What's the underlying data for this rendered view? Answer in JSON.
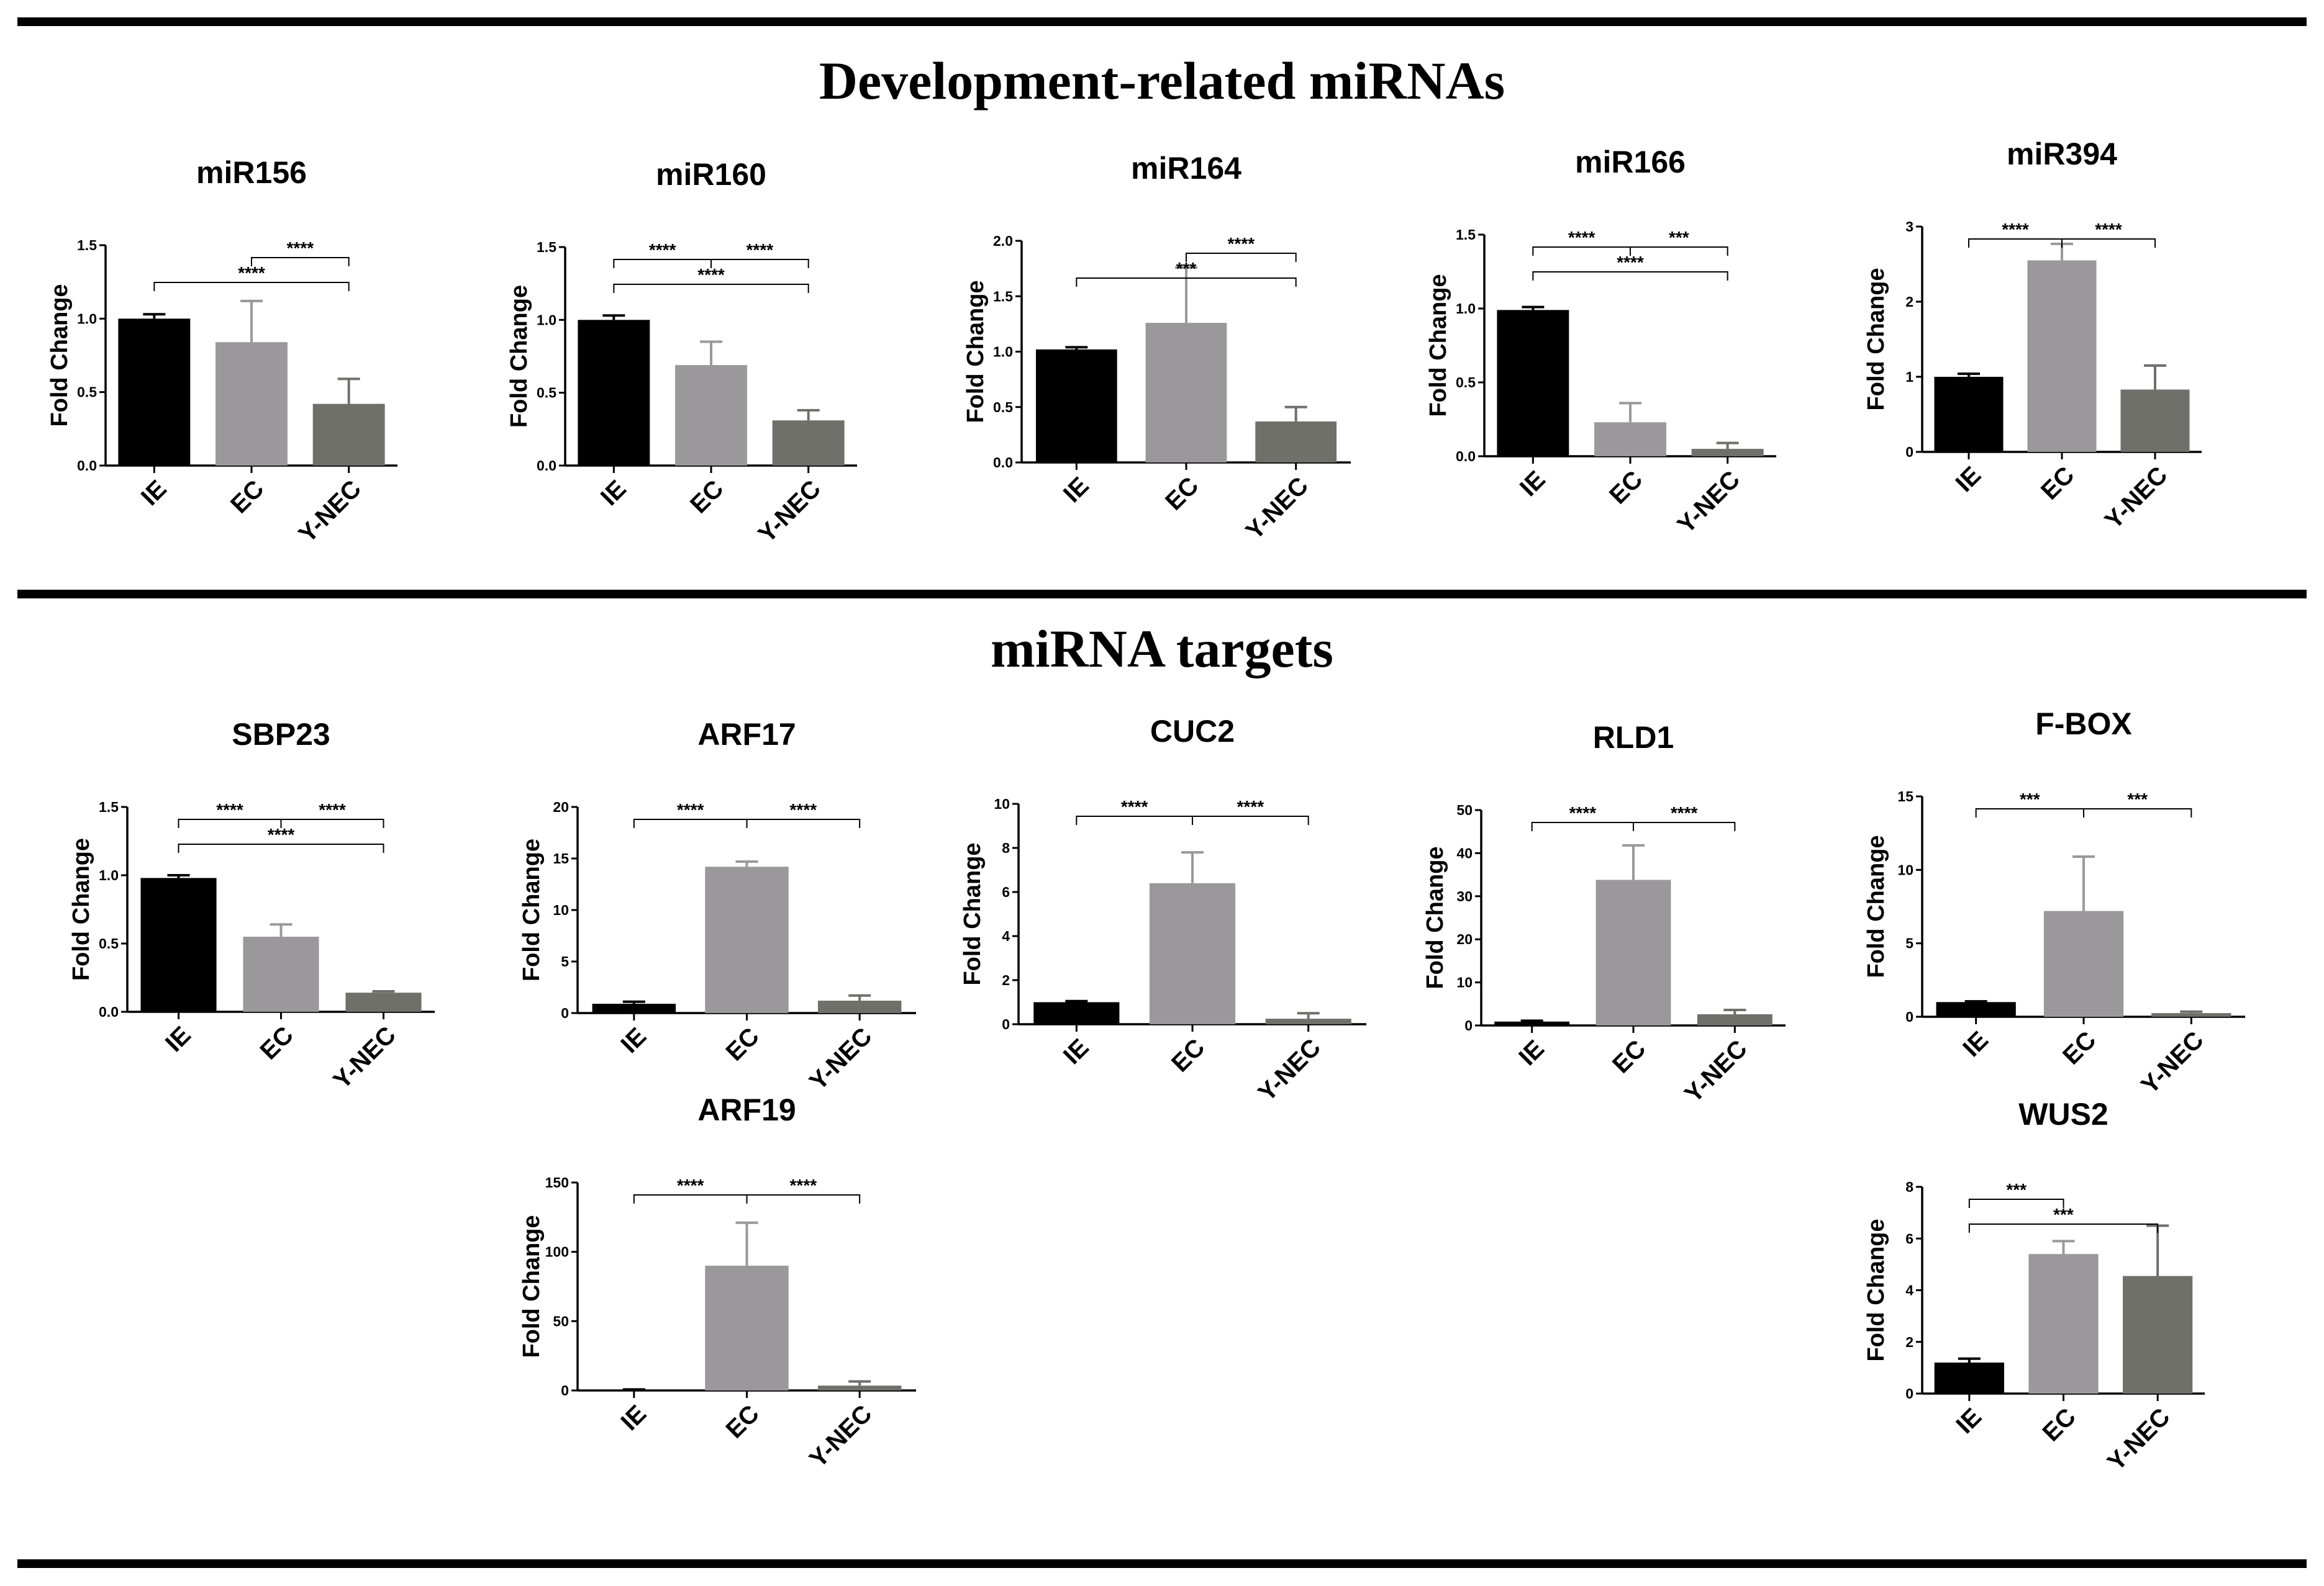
{
  "figure": {
    "sections": [
      {
        "title": "Development-related miRNAs"
      },
      {
        "title": "miRNA targets"
      }
    ]
  },
  "colors": {
    "IE": "#000000",
    "EC": "#9b989b",
    "Y-NEC": "#6e7069",
    "rule": "#000000"
  },
  "chart_data": [
    {
      "type": "bar",
      "title": "miR156",
      "ylabel": "Fold Change",
      "categories": [
        "IE",
        "EC",
        "Y-NEC"
      ],
      "values": [
        1.0,
        0.84,
        0.42
      ],
      "errors": [
        0.03,
        0.28,
        0.17
      ],
      "ylim": [
        0,
        1.5
      ],
      "yticks": [
        "0.0",
        "0.5",
        "1.0",
        "1.5"
      ],
      "significance": [
        {
          "from": "IE",
          "to": "Y-NEC",
          "label": "****"
        },
        {
          "from": "EC",
          "to": "Y-NEC",
          "label": "****"
        }
      ]
    },
    {
      "type": "bar",
      "title": "miR160",
      "ylabel": "Fold Change",
      "categories": [
        "IE",
        "EC",
        "Y-NEC"
      ],
      "values": [
        1.0,
        0.69,
        0.31
      ],
      "errors": [
        0.03,
        0.16,
        0.07
      ],
      "ylim": [
        0,
        1.5
      ],
      "yticks": [
        "0.0",
        "0.5",
        "1.0",
        "1.5"
      ],
      "significance": [
        {
          "from": "IE",
          "to": "Y-NEC",
          "label": "****"
        },
        {
          "from": "IE",
          "to": "EC",
          "label": "****"
        },
        {
          "from": "EC",
          "to": "Y-NEC",
          "label": "****"
        }
      ]
    },
    {
      "type": "bar",
      "title": "miR164",
      "ylabel": "Fold Change",
      "categories": [
        "IE",
        "EC",
        "Y-NEC"
      ],
      "values": [
        1.02,
        1.26,
        0.37
      ],
      "errors": [
        0.02,
        0.5,
        0.13
      ],
      "ylim": [
        0,
        2.0
      ],
      "yticks": [
        "0.0",
        "0.5",
        "1.0",
        "1.5",
        "2.0"
      ],
      "significance": [
        {
          "from": "IE",
          "to": "Y-NEC",
          "label": "***"
        },
        {
          "from": "EC",
          "to": "Y-NEC",
          "label": "****"
        }
      ]
    },
    {
      "type": "bar",
      "title": "miR166",
      "ylabel": "Fold Change",
      "categories": [
        "IE",
        "EC",
        "Y-NEC"
      ],
      "values": [
        0.99,
        0.23,
        0.05
      ],
      "errors": [
        0.02,
        0.13,
        0.04
      ],
      "ylim": [
        0,
        1.5
      ],
      "yticks": [
        "0.0",
        "0.5",
        "1.0",
        "1.5"
      ],
      "significance": [
        {
          "from": "IE",
          "to": "Y-NEC",
          "label": "****"
        },
        {
          "from": "IE",
          "to": "EC",
          "label": "****"
        },
        {
          "from": "EC",
          "to": "Y-NEC",
          "label": "***"
        }
      ]
    },
    {
      "type": "bar",
      "title": "miR394",
      "ylabel": "Fold Change",
      "categories": [
        "IE",
        "EC",
        "Y-NEC"
      ],
      "values": [
        1.0,
        2.55,
        0.83
      ],
      "errors": [
        0.04,
        0.22,
        0.32
      ],
      "ylim": [
        0,
        3
      ],
      "yticks": [
        "0",
        "1",
        "2",
        "3"
      ],
      "significance": [
        {
          "from": "IE",
          "to": "EC",
          "label": "****"
        },
        {
          "from": "EC",
          "to": "Y-NEC",
          "label": "****"
        }
      ]
    },
    {
      "type": "bar",
      "title": "SBP23",
      "ylabel": "Fold Change",
      "categories": [
        "IE",
        "EC",
        "Y-NEC"
      ],
      "values": [
        0.98,
        0.55,
        0.14
      ],
      "errors": [
        0.02,
        0.09,
        0.01
      ],
      "ylim": [
        0,
        1.5
      ],
      "yticks": [
        "0.0",
        "0.5",
        "1.0",
        "1.5"
      ],
      "significance": [
        {
          "from": "IE",
          "to": "Y-NEC",
          "label": "****"
        },
        {
          "from": "IE",
          "to": "EC",
          "label": "****"
        },
        {
          "from": "EC",
          "to": "Y-NEC",
          "label": "****"
        }
      ]
    },
    {
      "type": "bar",
      "title": "ARF17",
      "ylabel": "Fold Change",
      "categories": [
        "IE",
        "EC",
        "Y-NEC"
      ],
      "values": [
        0.9,
        14.2,
        1.2
      ],
      "errors": [
        0.2,
        0.5,
        0.5
      ],
      "ylim": [
        0,
        20
      ],
      "yticks": [
        "0",
        "5",
        "10",
        "15",
        "20"
      ],
      "significance": [
        {
          "from": "IE",
          "to": "EC",
          "label": "****"
        },
        {
          "from": "EC",
          "to": "Y-NEC",
          "label": "****"
        }
      ]
    },
    {
      "type": "bar",
      "title": "CUC2",
      "ylabel": "Fold Change",
      "categories": [
        "IE",
        "EC",
        "Y-NEC"
      ],
      "values": [
        1.0,
        6.4,
        0.25
      ],
      "errors": [
        0.05,
        1.4,
        0.25
      ],
      "ylim": [
        0,
        10
      ],
      "yticks": [
        "0",
        "2",
        "4",
        "6",
        "8",
        "10"
      ],
      "significance": [
        {
          "from": "IE",
          "to": "EC",
          "label": "****"
        },
        {
          "from": "EC",
          "to": "Y-NEC",
          "label": "****"
        }
      ]
    },
    {
      "type": "bar",
      "title": "RLD1",
      "ylabel": "Fold Change",
      "categories": [
        "IE",
        "EC",
        "Y-NEC"
      ],
      "values": [
        0.9,
        33.8,
        2.6
      ],
      "errors": [
        0.2,
        8.0,
        1.0
      ],
      "ylim": [
        0,
        50
      ],
      "yticks": [
        "0",
        "10",
        "20",
        "30",
        "40",
        "50"
      ],
      "significance": [
        {
          "from": "IE",
          "to": "EC",
          "label": "****"
        },
        {
          "from": "EC",
          "to": "Y-NEC",
          "label": "****"
        }
      ]
    },
    {
      "type": "bar",
      "title": "F-BOX",
      "ylabel": "Fold Change",
      "categories": [
        "IE",
        "EC",
        "Y-NEC"
      ],
      "values": [
        1.0,
        7.2,
        0.25
      ],
      "errors": [
        0.05,
        3.7,
        0.1
      ],
      "ylim": [
        0,
        15
      ],
      "yticks": [
        "0",
        "5",
        "10",
        "15"
      ],
      "significance": [
        {
          "from": "IE",
          "to": "EC",
          "label": "***"
        },
        {
          "from": "EC",
          "to": "Y-NEC",
          "label": "***"
        }
      ]
    },
    {
      "type": "bar",
      "title": "ARF19",
      "ylabel": "Fold Change",
      "categories": [
        "IE",
        "EC",
        "Y-NEC"
      ],
      "values": [
        0.5,
        90,
        3.5
      ],
      "errors": [
        0.2,
        31,
        3
      ],
      "ylim": [
        0,
        150
      ],
      "yticks": [
        "0",
        "50",
        "100",
        "150"
      ],
      "significance": [
        {
          "from": "IE",
          "to": "EC",
          "label": "****"
        },
        {
          "from": "EC",
          "to": "Y-NEC",
          "label": "****"
        }
      ]
    },
    {
      "type": "bar",
      "title": "WUS2",
      "ylabel": "Fold Change",
      "categories": [
        "IE",
        "EC",
        "Y-NEC"
      ],
      "values": [
        1.2,
        5.4,
        4.55
      ],
      "errors": [
        0.15,
        0.5,
        1.95
      ],
      "ylim": [
        0,
        8
      ],
      "yticks": [
        "0",
        "2",
        "4",
        "6",
        "8"
      ],
      "significance": [
        {
          "from": "IE",
          "to": "Y-NEC",
          "label": "***"
        },
        {
          "from": "IE",
          "to": "EC",
          "label": "***"
        }
      ]
    }
  ]
}
